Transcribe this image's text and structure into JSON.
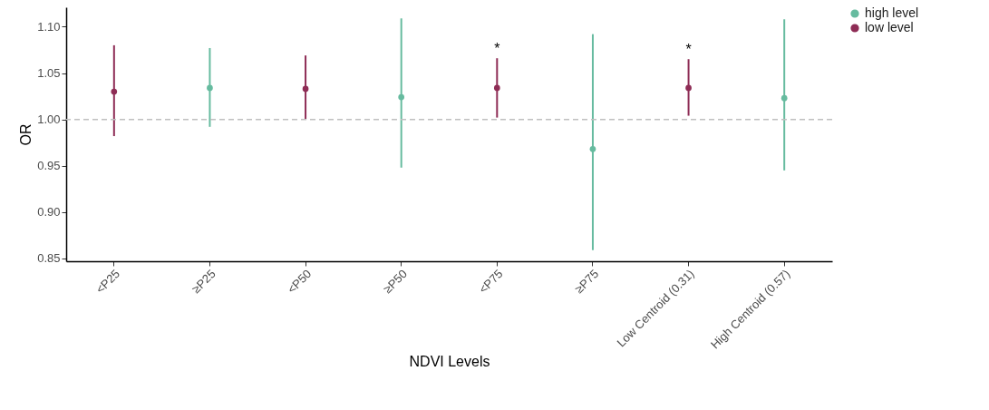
{
  "chart_data": {
    "type": "scatter",
    "xlabel": "NDVI Levels",
    "ylabel": "OR",
    "categories": [
      "<P25",
      "≥P25",
      "<P50",
      "≥P50",
      "<P75",
      "≥P75",
      "Low Centroid (0.31)",
      "High Centroid (0.57)"
    ],
    "series": [
      {
        "name": "high level",
        "color": "#66bb9f",
        "values": [
          null,
          1.034,
          null,
          1.024,
          null,
          0.968,
          null,
          1.023
        ],
        "errors": [
          null,
          [
            0.992,
            1.077
          ],
          null,
          [
            0.948,
            1.109
          ],
          null,
          [
            0.859,
            1.092
          ],
          null,
          [
            0.945,
            1.108
          ]
        ]
      },
      {
        "name": "low level",
        "color": "#8e2c55",
        "values": [
          1.03,
          null,
          1.033,
          null,
          1.034,
          null,
          1.034,
          null
        ],
        "errors": [
          [
            0.982,
            1.08
          ],
          null,
          [
            1.0,
            1.069
          ],
          null,
          [
            1.002,
            1.066
          ],
          null,
          [
            1.004,
            1.065
          ],
          null
        ]
      }
    ],
    "ylim": [
      0.847,
      1.121
    ],
    "yticks": [
      {
        "value": 0.85,
        "label": "0.85"
      },
      {
        "value": 0.9,
        "label": "0.90"
      },
      {
        "value": 0.95,
        "label": "0.95"
      },
      {
        "value": 1.0,
        "label": "1.00"
      },
      {
        "value": 1.05,
        "label": "1.05"
      },
      {
        "value": 1.1,
        "label": "1.10"
      }
    ],
    "ref_lines": [
      {
        "axis": "y",
        "value": 1.0,
        "label": null,
        "color": "#c0c0c0",
        "line_style": "dashed"
      }
    ],
    "annotations": [
      {
        "text": "*",
        "x": "<P75",
        "y": 1.066
      },
      {
        "text": "*",
        "x": "Low Centroid (0.31)",
        "y": 1.065
      }
    ],
    "grid": false,
    "legend": "right",
    "marker": "circle"
  }
}
